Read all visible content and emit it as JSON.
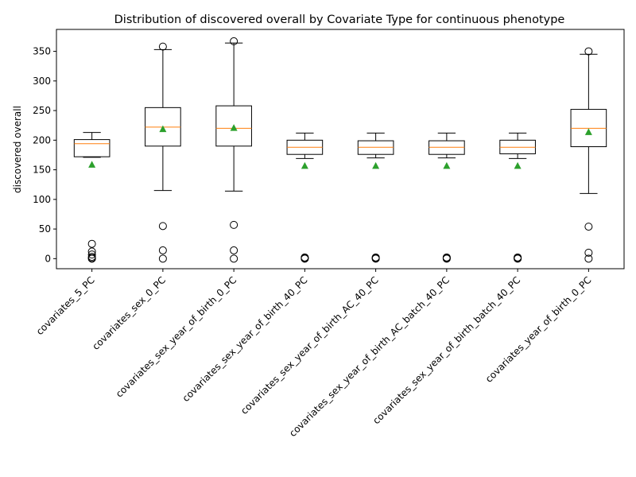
{
  "chart_data": {
    "type": "box",
    "title": "Distribution of discovered overall by Covariate Type for continuous phenotype",
    "xlabel": "",
    "ylabel": "discovered overall",
    "ylim": [
      -17,
      387
    ],
    "yticks": [
      0,
      50,
      100,
      150,
      200,
      250,
      300,
      350
    ],
    "categories": [
      "covariates_5_PC",
      "covariates_sex_0_PC",
      "covariates_sex_year_of_birth_0_PC",
      "covariates_sex_year_of_birth_40_PC",
      "covariates_sex_year_of_birth_AC_40_PC",
      "covariates_sex_year_of_birth_AC_batch_40_PC",
      "covariates_sex_year_of_birth_batch_40_PC",
      "covariates_year_of_birth_0_PC"
    ],
    "boxes": [
      {
        "whisker_low": 171,
        "q1": 172,
        "median": 194,
        "q3": 201,
        "whisker_high": 213,
        "mean": 159,
        "outliers": [
          25,
          12,
          7,
          3,
          1,
          0
        ]
      },
      {
        "whisker_low": 115,
        "q1": 190,
        "median": 222,
        "q3": 255,
        "whisker_high": 353,
        "mean": 219,
        "outliers": [
          358,
          55,
          14,
          0
        ]
      },
      {
        "whisker_low": 114,
        "q1": 190,
        "median": 220,
        "q3": 258,
        "whisker_high": 364,
        "mean": 221,
        "outliers": [
          367,
          57,
          14,
          0
        ]
      },
      {
        "whisker_low": 169,
        "q1": 176,
        "median": 188,
        "q3": 200,
        "whisker_high": 212,
        "mean": 157,
        "outliers": [
          2,
          1,
          0
        ]
      },
      {
        "whisker_low": 170,
        "q1": 176,
        "median": 188,
        "q3": 199,
        "whisker_high": 212,
        "mean": 157,
        "outliers": [
          2,
          1,
          0
        ]
      },
      {
        "whisker_low": 170,
        "q1": 176,
        "median": 188,
        "q3": 199,
        "whisker_high": 212,
        "mean": 157,
        "outliers": [
          2,
          1,
          0
        ]
      },
      {
        "whisker_low": 169,
        "q1": 177,
        "median": 188,
        "q3": 200,
        "whisker_high": 212,
        "mean": 157,
        "outliers": [
          2,
          1,
          0
        ]
      },
      {
        "whisker_low": 110,
        "q1": 189,
        "median": 220,
        "q3": 252,
        "whisker_high": 345,
        "mean": 214,
        "outliers": [
          350,
          54,
          10,
          0
        ]
      }
    ],
    "grid": false,
    "colors": {
      "box": "#000000",
      "median": "#ff7f0e",
      "mean": "#2ca02c",
      "outlier": "#000000"
    }
  }
}
